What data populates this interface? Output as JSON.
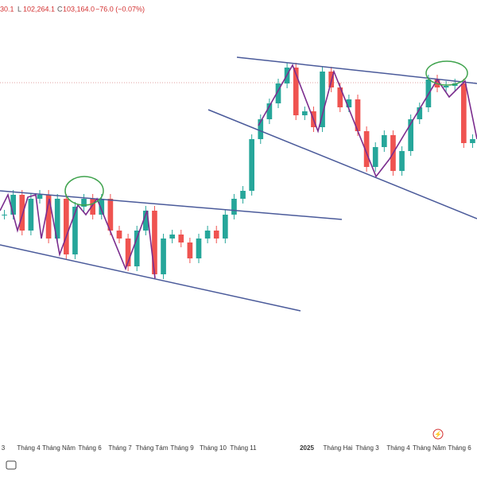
{
  "chart_data": {
    "type": "candlestick",
    "header": {
      "open_tail": "30.1",
      "low_key": "L",
      "low": "102,264.1",
      "close_key": "C",
      "close": "103,164.0",
      "change": "−76.0 (−0.07%)"
    },
    "x_labels": [
      "3",
      "Tháng 4",
      "Tháng Năm",
      "Tháng 6",
      "Tháng 7",
      "Tháng Tám",
      "Tháng 9",
      "Tháng 10",
      "Tháng 11",
      "2025",
      "Tháng Hai",
      "Tháng 3",
      "Tháng 4",
      "Tháng Năm",
      "Tháng 6"
    ],
    "values": [
      67500,
      73750,
      62500,
      72500,
      73750,
      60000,
      72500,
      55000,
      70000,
      72500,
      67500,
      72500,
      62500,
      60000,
      51250,
      62500,
      68750,
      48750,
      60000,
      61250,
      58750,
      53750,
      60000,
      62500,
      60000,
      67500,
      72500,
      75000,
      91250,
      97500,
      102500,
      108750,
      113750,
      98750,
      100000,
      95000,
      112500,
      107500,
      101250,
      103750,
      93750,
      82500,
      88750,
      92500,
      81250,
      87500,
      97500,
      101250,
      110000,
      107500,
      108000,
      108750,
      90000,
      91250
    ],
    "ylim": [
      0,
      130000
    ],
    "up_color": "#26a69a",
    "down_color": "#ef5350"
  }
}
